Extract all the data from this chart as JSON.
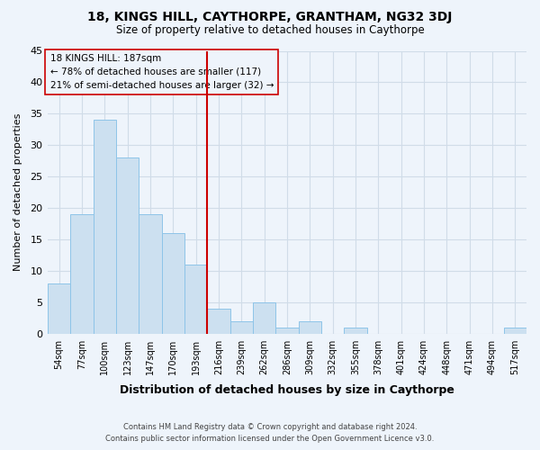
{
  "title": "18, KINGS HILL, CAYTHORPE, GRANTHAM, NG32 3DJ",
  "subtitle": "Size of property relative to detached houses in Caythorpe",
  "xlabel": "Distribution of detached houses by size in Caythorpe",
  "ylabel": "Number of detached properties",
  "bar_color": "#cce0f0",
  "bar_edge_color": "#8ec4e8",
  "bin_labels": [
    "54sqm",
    "77sqm",
    "100sqm",
    "123sqm",
    "147sqm",
    "170sqm",
    "193sqm",
    "216sqm",
    "239sqm",
    "262sqm",
    "286sqm",
    "309sqm",
    "332sqm",
    "355sqm",
    "378sqm",
    "401sqm",
    "424sqm",
    "448sqm",
    "471sqm",
    "494sqm",
    "517sqm"
  ],
  "bar_heights": [
    8,
    19,
    34,
    28,
    19,
    16,
    11,
    4,
    2,
    5,
    1,
    2,
    0,
    1,
    0,
    0,
    0,
    0,
    0,
    0,
    1
  ],
  "ylim": [
    0,
    45
  ],
  "yticks": [
    0,
    5,
    10,
    15,
    20,
    25,
    30,
    35,
    40,
    45
  ],
  "property_line_x": 6.5,
  "property_line_color": "#cc0000",
  "annotation_box_edge_color": "#cc0000",
  "annotation_line1": "18 KINGS HILL: 187sqm",
  "annotation_line2": "← 78% of detached houses are smaller (117)",
  "annotation_line3": "21% of semi-detached houses are larger (32) →",
  "footer_line1": "Contains HM Land Registry data © Crown copyright and database right 2024.",
  "footer_line2": "Contains public sector information licensed under the Open Government Licence v3.0.",
  "background_color": "#eef4fb",
  "grid_color": "#d0dce8"
}
